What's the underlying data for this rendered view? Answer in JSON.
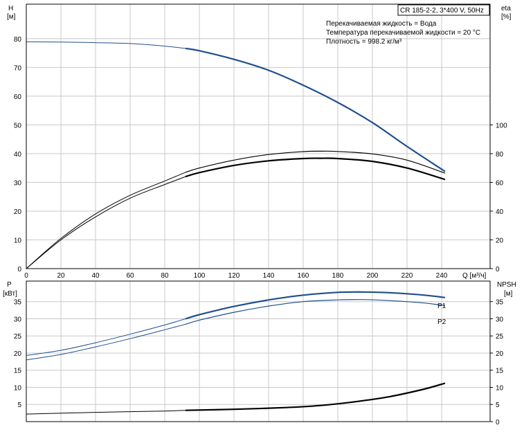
{
  "colors": {
    "head_curve": "#1f4e8c",
    "efficiency_curve": "#000000",
    "power_curve": "#1f4e8c",
    "npsh_curve": "#000000",
    "grid": "#c8c8c8"
  },
  "top_panel": {
    "y_left_label": "H",
    "y_left_unit": "[м]",
    "y_right_label": "eta",
    "y_right_unit": "[%]",
    "x_label": "Q [м³/ч]"
  },
  "bottom_panel": {
    "y_left_label": "P",
    "y_left_unit": "[кВт]",
    "y_right_label": "NPSH",
    "y_right_unit": "[м]"
  },
  "info_box": {
    "model": "CR 185-2-2, 3*400 V, 50Hz",
    "line1": "Перекачиваемая жидкость = Вода",
    "line2": "Температура перекачиваемой жидкости = 20 °C",
    "line3": "Плотность = 998.2 кг/м³"
  },
  "chart_data": [
    {
      "type": "line",
      "panel": "top",
      "x_ticks": [
        0,
        20,
        40,
        60,
        80,
        100,
        120,
        140,
        160,
        180,
        200,
        220,
        240
      ],
      "y_left_ticks": [
        0,
        10,
        20,
        30,
        40,
        50,
        60,
        70,
        80
      ],
      "y_right_ticks": [
        0,
        20,
        40,
        60,
        80,
        100
      ],
      "xlim": [
        0,
        268
      ],
      "ylim_left": [
        0,
        92
      ],
      "ylim_right": [
        0,
        184
      ],
      "series": [
        {
          "key": "H",
          "axis": "left",
          "x": [
            0,
            20,
            40,
            60,
            80,
            92,
            100,
            120,
            140,
            160,
            180,
            200,
            220,
            242
          ],
          "y": [
            78.9,
            78.8,
            78.6,
            78.3,
            77.4,
            76.6,
            75.8,
            72.8,
            69.0,
            63.8,
            57.8,
            50.8,
            42.5,
            33.8
          ]
        },
        {
          "key": "eta_upper",
          "axis": "right",
          "x": [
            0,
            20,
            40,
            60,
            80,
            92,
            100,
            120,
            140,
            160,
            170,
            180,
            200,
            220,
            242
          ],
          "y": [
            0,
            21,
            38,
            51,
            61,
            67,
            70,
            75.5,
            79.4,
            81.4,
            81.7,
            81.5,
            79.8,
            75.5,
            66.4
          ]
        },
        {
          "key": "eta_lower",
          "axis": "right",
          "x": [
            0,
            20,
            40,
            60,
            80,
            92,
            100,
            120,
            140,
            160,
            170,
            180,
            200,
            220,
            242
          ],
          "y": [
            0,
            20,
            36,
            49,
            58.5,
            64,
            66.8,
            71.8,
            75.0,
            76.6,
            76.8,
            76.6,
            74.6,
            70.0,
            62.0
          ]
        }
      ]
    },
    {
      "type": "line",
      "panel": "bottom",
      "x_ticks": [
        0,
        20,
        40,
        60,
        80,
        100,
        120,
        140,
        160,
        180,
        200,
        220,
        240
      ],
      "y_left_ticks": [
        5,
        10,
        15,
        20,
        25,
        30,
        35
      ],
      "y_right_ticks": [
        0,
        5,
        10,
        15,
        20,
        25,
        30,
        35
      ],
      "xlim": [
        0,
        268
      ],
      "ylim_left": [
        0,
        41
      ],
      "ylim_right": [
        0,
        41
      ],
      "series": [
        {
          "name": "P1",
          "axis": "left",
          "x": [
            0,
            20,
            40,
            60,
            80,
            92,
            100,
            120,
            140,
            160,
            180,
            195,
            210,
            230,
            242
          ],
          "y": [
            19.3,
            20.8,
            23.0,
            25.5,
            28.2,
            30.0,
            31.2,
            33.6,
            35.5,
            36.9,
            37.7,
            37.8,
            37.6,
            36.9,
            36.2
          ]
        },
        {
          "name": "P2",
          "axis": "left",
          "x": [
            0,
            20,
            40,
            60,
            80,
            92,
            100,
            120,
            140,
            160,
            180,
            195,
            210,
            230,
            242
          ],
          "y": [
            18.0,
            19.6,
            21.8,
            24.2,
            26.8,
            28.4,
            29.6,
            31.9,
            33.7,
            35.0,
            35.5,
            35.6,
            35.3,
            34.6,
            33.8
          ]
        },
        {
          "key": "NPSH",
          "axis": "right",
          "x": [
            0,
            40,
            80,
            92,
            120,
            150,
            170,
            190,
            210,
            230,
            242
          ],
          "y": [
            2.2,
            2.7,
            3.1,
            3.3,
            3.6,
            4.1,
            4.7,
            5.8,
            7.3,
            9.5,
            11.2
          ]
        }
      ]
    }
  ]
}
